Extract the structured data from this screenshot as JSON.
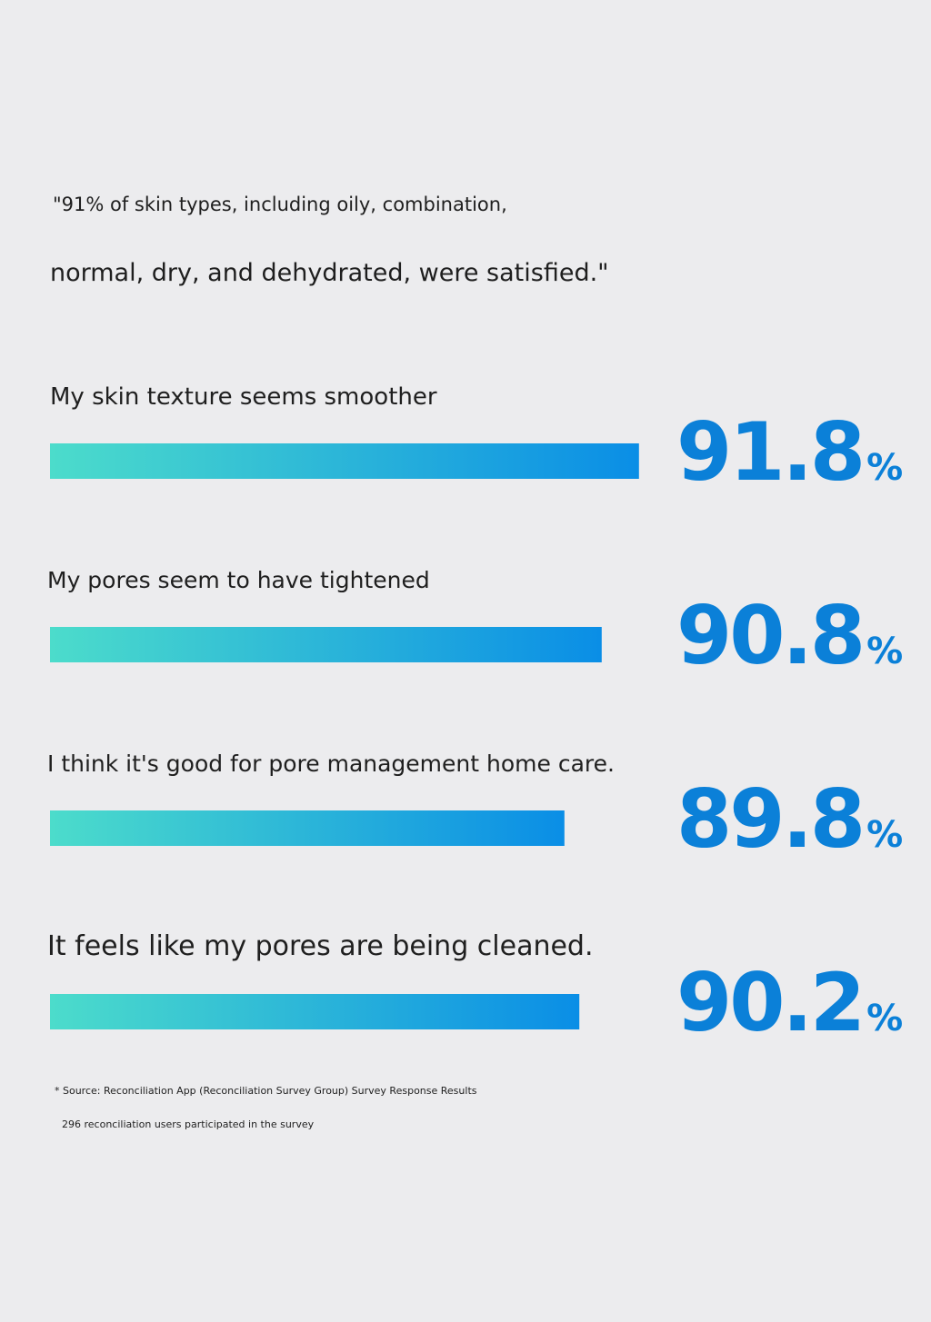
{
  "chart_data": {
    "type": "bar",
    "orientation": "horizontal",
    "title": "\"91% of skin types, including oily, combination,",
    "subtitle": "normal, dry, and dehydrated, were satisfied.\"",
    "categories": [
      "My skin texture seems smoother",
      "My pores seem to have tightened",
      "I think it's good for pore management home care.",
      "It feels like my pores are being cleaned."
    ],
    "values": [
      91.8,
      90.8,
      89.8,
      90.2
    ],
    "value_labels": [
      "91.8%",
      "90.8%",
      "89.8%",
      "90.2%"
    ],
    "xlim": [
      76,
      92
    ],
    "color": [
      "#4cdccb",
      "#0a8ee6"
    ],
    "label_color": "#0b80d8",
    "notes": [
      "* Source: Reconciliation App (Reconciliation Survey Group) Survey Response Results",
      "296 reconciliation users participated in the survey"
    ]
  }
}
